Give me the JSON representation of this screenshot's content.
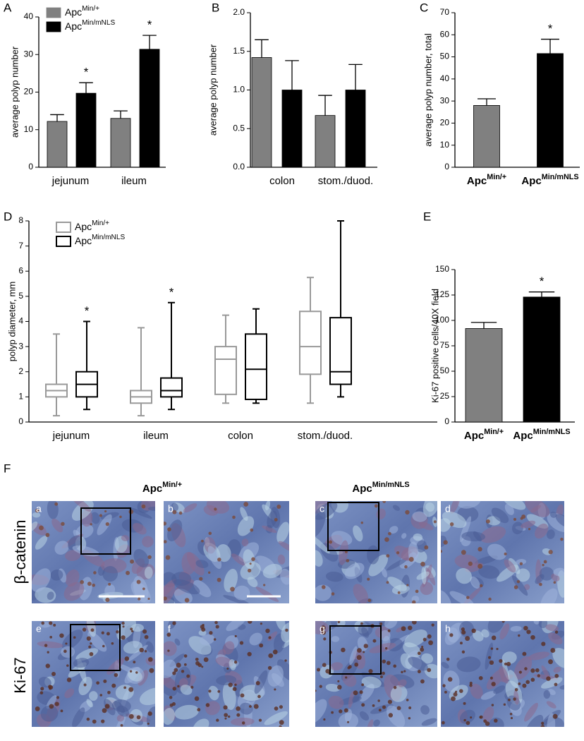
{
  "chart_data": [
    {
      "type": "bar",
      "panel_label": "A",
      "y_label": "average polyp number",
      "categories": [
        "jejunum",
        "ileum"
      ],
      "series": [
        {
          "name": "ApcMin/+",
          "color": "#808080",
          "values": [
            12.2,
            13.0
          ],
          "errors": [
            1.8,
            2.0
          ]
        },
        {
          "name": "ApcMin/mNLS",
          "color": "#000000",
          "values": [
            19.7,
            31.4
          ],
          "errors": [
            2.8,
            3.7
          ]
        }
      ],
      "ylim": [
        0,
        40
      ],
      "yticks": [
        0,
        10,
        20,
        30,
        40
      ],
      "legend": "upper left",
      "annotations": [
        {
          "text": "*",
          "series": 1,
          "category": 0
        },
        {
          "text": "*",
          "series": 1,
          "category": 1
        }
      ]
    },
    {
      "type": "bar",
      "panel_label": "B",
      "y_label": "average polyp number",
      "categories": [
        "colon",
        "stom./duod."
      ],
      "series": [
        {
          "name": "ApcMin/+",
          "color": "#808080",
          "values": [
            1.42,
            0.67
          ],
          "errors": [
            0.23,
            0.26
          ]
        },
        {
          "name": "ApcMin/mNLS",
          "color": "#000000",
          "values": [
            1.0,
            1.0
          ],
          "errors": [
            0.38,
            0.33
          ]
        }
      ],
      "ylim": [
        0,
        2
      ],
      "yticks": [
        {
          "value": 0,
          "label": "0.0"
        },
        0.5,
        {
          "value": 1,
          "label": "1.0"
        },
        1.5,
        {
          "value": 2,
          "label": "2.0"
        }
      ]
    },
    {
      "type": "bar",
      "panel_label": "C",
      "y_label": "average polyp number, total",
      "categories": [
        "ApcMin/+",
        "ApcMin/mNLS"
      ],
      "values": [
        28,
        51.5
      ],
      "errors": [
        3,
        6.5
      ],
      "colors": [
        "#808080",
        "#000000"
      ],
      "ylim": [
        0,
        70
      ],
      "yticks": [
        0,
        10,
        20,
        30,
        40,
        50,
        60,
        70
      ],
      "annotations": [
        {
          "text": "*",
          "category": 1
        }
      ]
    },
    {
      "type": "box",
      "panel_label": "D",
      "y_label": "polyp diameter, mm",
      "categories": [
        "jejunum",
        "ileum",
        "colon",
        "stom./duod."
      ],
      "series": [
        {
          "name": "ApcMin/+",
          "color": "#999999",
          "min": [
            0.25,
            0.25,
            0.75,
            0.75
          ],
          "q1": [
            1.0,
            0.75,
            1.1,
            1.9
          ],
          "median": [
            1.25,
            1.0,
            2.5,
            3.0
          ],
          "q3": [
            1.5,
            1.25,
            3.0,
            4.4
          ],
          "max": [
            3.5,
            3.75,
            4.25,
            5.75
          ]
        },
        {
          "name": "ApcMin/mNLS",
          "color": "#000000",
          "min": [
            0.5,
            0.5,
            0.75,
            1.0
          ],
          "q1": [
            1.0,
            1.0,
            0.9,
            1.5
          ],
          "median": [
            1.5,
            1.25,
            2.1,
            2.0
          ],
          "q3": [
            2.0,
            1.75,
            3.5,
            4.15
          ],
          "max": [
            4.0,
            4.75,
            4.5,
            8.0
          ]
        }
      ],
      "ylim": [
        0,
        8
      ],
      "yticks": [
        0,
        1,
        2,
        3,
        4,
        5,
        6,
        7,
        8
      ],
      "legend": "upper left",
      "annotations": [
        {
          "text": "*",
          "series": 1,
          "category": 0
        },
        {
          "text": "*",
          "series": 1,
          "category": 1
        }
      ]
    },
    {
      "type": "bar",
      "panel_label": "E",
      "y_label": "Ki-67 positive cells/40X field",
      "categories": [
        "ApcMin/+",
        "ApcMin/mNLS"
      ],
      "values": [
        92,
        123
      ],
      "errors": [
        6,
        5
      ],
      "colors": [
        "#808080",
        "#000000"
      ],
      "ylim": [
        0,
        150
      ],
      "yticks": [
        0,
        25,
        50,
        75,
        100,
        125,
        150
      ],
      "annotations": [
        {
          "text": "*",
          "category": 1
        }
      ]
    }
  ],
  "figure_panel": {
    "label": "F",
    "column_titles": [
      "ApcMin/+",
      "ApcMin/mNLS"
    ],
    "row_labels": [
      "β-catenin",
      "Ki-67"
    ],
    "image_labels": [
      "a",
      "b",
      "c",
      "d",
      "e",
      "f",
      "g",
      "h"
    ]
  }
}
